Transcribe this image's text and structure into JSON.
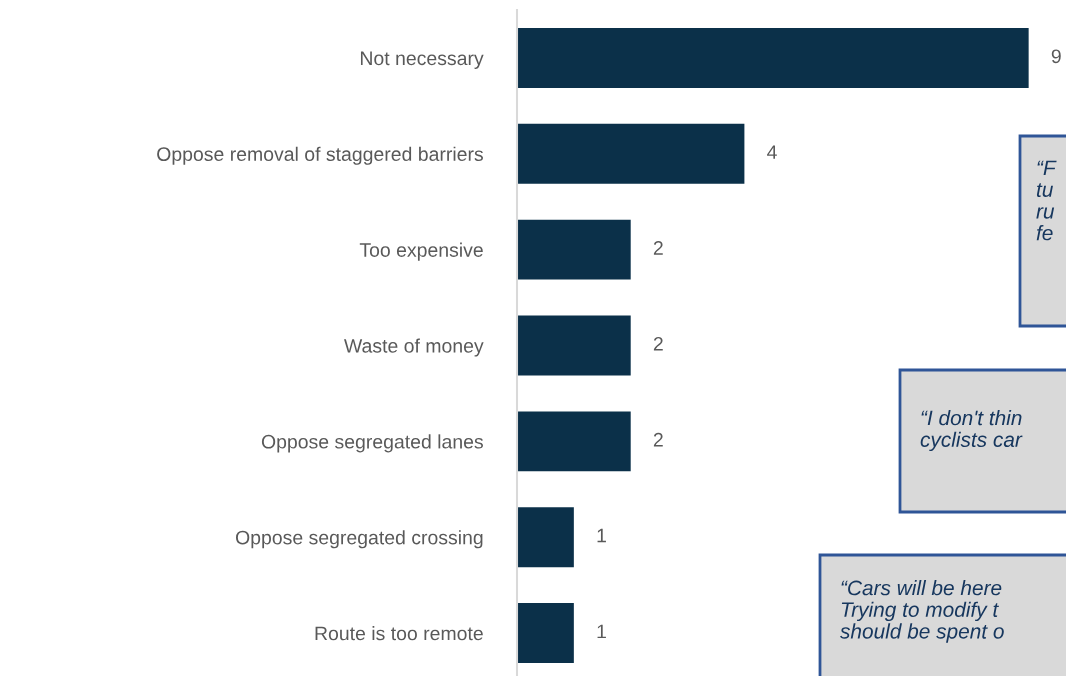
{
  "chart_data": {
    "type": "bar",
    "orientation": "horizontal",
    "categories": [
      "Not necessary",
      "Oppose removal of staggered barriers",
      "Too expensive",
      "Waste of money",
      "Oppose segregated lanes",
      "Oppose segregated crossing",
      "Route is too remote"
    ],
    "values": [
      9,
      4,
      2,
      2,
      2,
      1,
      1
    ],
    "color": "#0b3049",
    "data_labels": true,
    "tick_labels": "y",
    "grid": false,
    "legend": false,
    "annotations": [
      "“F\ntu\nru\nfe",
      "“I don't thin\ncyclists car",
      "“Cars will be here\nTrying to modify t\nshould be spent o"
    ]
  }
}
